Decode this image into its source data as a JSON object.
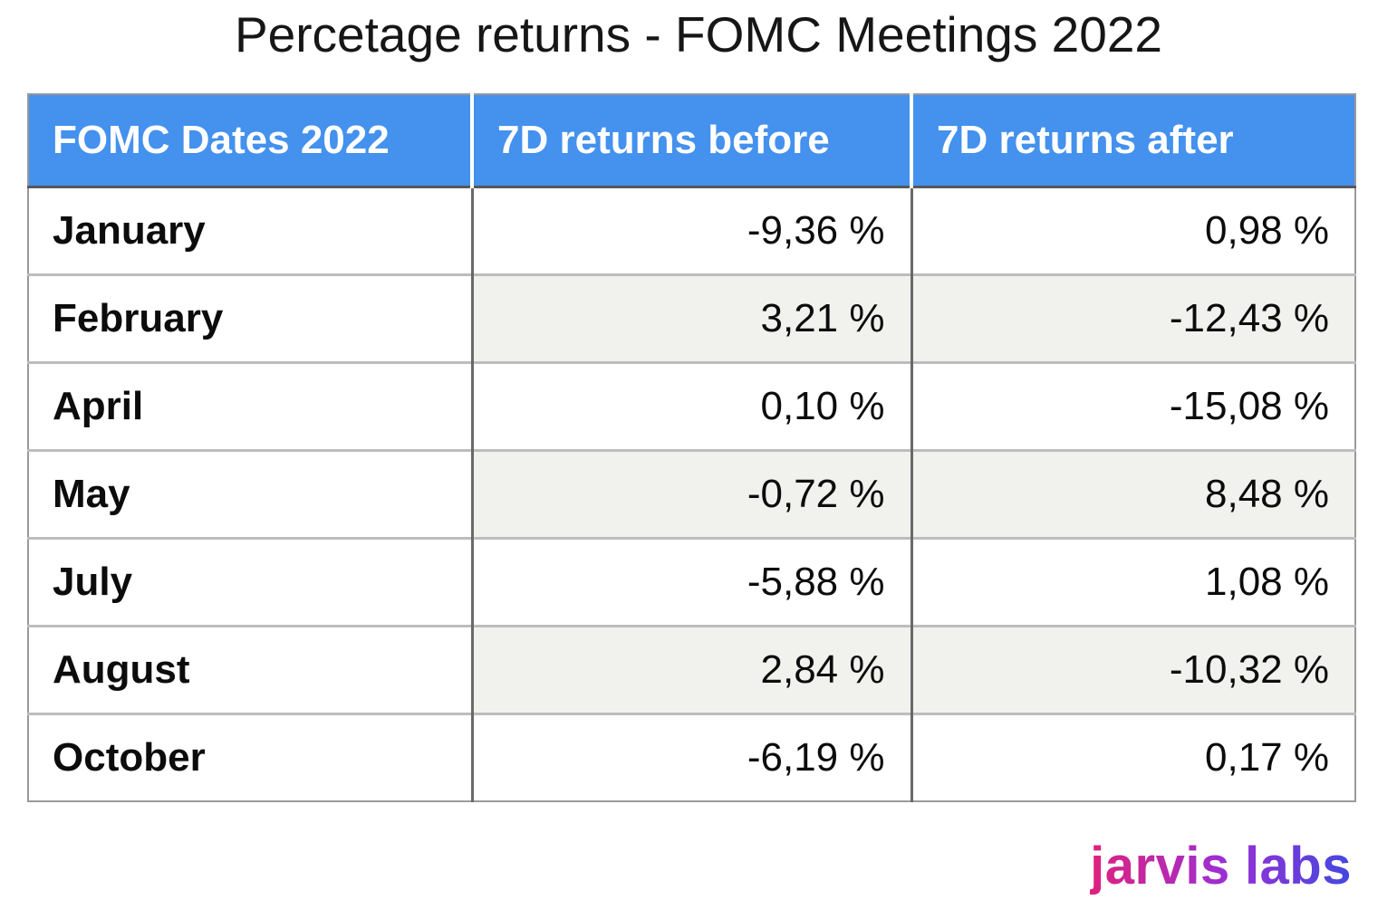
{
  "title": "Percetage returns - FOMC Meetings 2022",
  "colors": {
    "header_bg": "#4491ee",
    "header_text": "#ffffff",
    "alt_cell_bg": "#f1f1ee",
    "outer_border": "#9a9a9a",
    "column_separator": "#696969",
    "row_separator": "#bdbdbd",
    "logo_gradient_start": "#e0217d",
    "logo_gradient_mid": "#9b2fd4",
    "logo_gradient_end": "#4348e0"
  },
  "table": {
    "columns": [
      "FOMC Dates 2022",
      "7D returns before",
      "7D returns after"
    ],
    "rows": [
      {
        "month": "January",
        "before": "-9,36 %",
        "after": "0,98 %"
      },
      {
        "month": "February",
        "before": "3,21 %",
        "after": "-12,43 %"
      },
      {
        "month": "April",
        "before": "0,10 %",
        "after": "-15,08 %"
      },
      {
        "month": "May",
        "before": "-0,72 %",
        "after": "8,48 %"
      },
      {
        "month": "July",
        "before": "-5,88 %",
        "after": "1,08 %"
      },
      {
        "month": "August",
        "before": "2,84 %",
        "after": "-10,32 %"
      },
      {
        "month": "October",
        "before": "-6,19 %",
        "after": "0,17 %"
      }
    ]
  },
  "logo": {
    "brand": "jarvis",
    "suffix": "labs"
  },
  "chart_data": {
    "type": "table",
    "title": "Percetage returns - FOMC Meetings 2022",
    "categories": [
      "January",
      "February",
      "April",
      "May",
      "July",
      "August",
      "October"
    ],
    "series": [
      {
        "name": "7D returns before",
        "unit": "%",
        "values": [
          -9.36,
          3.21,
          0.1,
          -0.72,
          -5.88,
          2.84,
          -6.19
        ]
      },
      {
        "name": "7D returns after",
        "unit": "%",
        "values": [
          0.98,
          -12.43,
          -15.08,
          8.48,
          1.08,
          -10.32,
          0.17
        ]
      }
    ],
    "notes": "Decimal comma formatting as displayed; alternating light-gray shading on value columns only; branding 'jarvis labs' bottom right"
  }
}
